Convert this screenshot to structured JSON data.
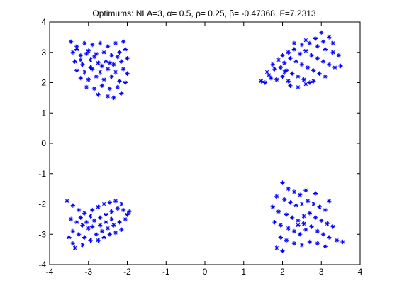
{
  "chart_data": {
    "type": "scatter",
    "title": "Optimums: NLA=3, α= 0.5, ρ= 0.25, β= -0.47368, F=7.2313",
    "xlabel": "",
    "ylabel": "",
    "xlim": [
      -4,
      4
    ],
    "ylim": [
      -4,
      4
    ],
    "xticks": [
      -4,
      -3,
      -2,
      -1,
      0,
      1,
      2,
      3,
      4
    ],
    "yticks": [
      -4,
      -3,
      -2,
      -1,
      0,
      1,
      2,
      3,
      4
    ],
    "xtick_labels": [
      "-4",
      "-3",
      "-2",
      "-1",
      "0",
      "1",
      "2",
      "3",
      "4"
    ],
    "ytick_labels": [
      "-4",
      "-3",
      "-2",
      "-1",
      "0",
      "1",
      "2",
      "3",
      "4"
    ],
    "grid": false,
    "marker": "asterisk",
    "marker_color": "#0000ff",
    "series": [
      {
        "points": [
          [
            -3.45,
            3.35
          ],
          [
            -3.3,
            3.2
          ],
          [
            -3.1,
            3.3
          ],
          [
            -2.9,
            3.25
          ],
          [
            -2.7,
            3.3
          ],
          [
            -2.5,
            3.2
          ],
          [
            -2.3,
            3.3
          ],
          [
            -2.1,
            3.35
          ],
          [
            -3.4,
            3.0
          ],
          [
            -3.2,
            2.9
          ],
          [
            -3.0,
            3.05
          ],
          [
            -2.8,
            2.95
          ],
          [
            -2.6,
            3.0
          ],
          [
            -2.4,
            2.9
          ],
          [
            -2.2,
            3.0
          ],
          [
            -2.05,
            3.1
          ],
          [
            -3.35,
            2.7
          ],
          [
            -3.15,
            2.6
          ],
          [
            -2.95,
            2.75
          ],
          [
            -2.75,
            2.65
          ],
          [
            -2.55,
            2.7
          ],
          [
            -2.35,
            2.6
          ],
          [
            -2.15,
            2.7
          ],
          [
            -2.0,
            2.8
          ],
          [
            -3.3,
            2.4
          ],
          [
            -3.1,
            2.35
          ],
          [
            -2.9,
            2.45
          ],
          [
            -2.7,
            2.35
          ],
          [
            -2.5,
            2.45
          ],
          [
            -2.3,
            2.35
          ],
          [
            -2.1,
            2.45
          ],
          [
            -2.0,
            2.3
          ],
          [
            -3.2,
            2.15
          ],
          [
            -3.0,
            2.1
          ],
          [
            -2.8,
            2.2
          ],
          [
            -2.6,
            2.1
          ],
          [
            -2.4,
            2.2
          ],
          [
            -2.2,
            2.05
          ],
          [
            -2.05,
            2.0
          ],
          [
            -3.05,
            1.85
          ],
          [
            -2.85,
            1.8
          ],
          [
            -2.65,
            1.9
          ],
          [
            -2.45,
            1.8
          ],
          [
            -2.25,
            1.85
          ],
          [
            -2.75,
            1.6
          ],
          [
            -2.5,
            1.55
          ],
          [
            -2.35,
            1.5
          ],
          [
            -2.15,
            1.65
          ],
          [
            -3.3,
            3.1
          ],
          [
            -3.05,
            2.95
          ],
          [
            -2.85,
            2.85
          ],
          [
            -2.65,
            2.55
          ],
          [
            -2.45,
            2.65
          ],
          [
            -2.25,
            2.85
          ],
          [
            -3.2,
            2.75
          ],
          [
            -2.95,
            2.5
          ]
        ]
      },
      {
        "points": [
          [
            1.45,
            2.05
          ],
          [
            1.55,
            2.0
          ],
          [
            1.7,
            2.15
          ],
          [
            1.85,
            2.1
          ],
          [
            2.0,
            2.2
          ],
          [
            2.15,
            2.05
          ],
          [
            1.6,
            2.35
          ],
          [
            1.8,
            2.45
          ],
          [
            1.95,
            2.5
          ],
          [
            2.1,
            2.4
          ],
          [
            2.25,
            2.3
          ],
          [
            2.4,
            2.2
          ],
          [
            2.55,
            2.1
          ],
          [
            2.7,
            2.0
          ],
          [
            1.75,
            2.6
          ],
          [
            1.9,
            2.75
          ],
          [
            2.05,
            2.65
          ],
          [
            2.2,
            2.8
          ],
          [
            2.35,
            2.7
          ],
          [
            2.5,
            2.6
          ],
          [
            2.65,
            2.5
          ],
          [
            2.8,
            2.4
          ],
          [
            2.95,
            2.3
          ],
          [
            3.1,
            2.2
          ],
          [
            2.0,
            2.9
          ],
          [
            2.15,
            3.0
          ],
          [
            2.3,
            3.1
          ],
          [
            2.45,
            2.95
          ],
          [
            2.6,
            3.05
          ],
          [
            2.75,
            2.9
          ],
          [
            2.9,
            2.8
          ],
          [
            3.05,
            2.7
          ],
          [
            3.2,
            2.6
          ],
          [
            3.35,
            2.5
          ],
          [
            3.5,
            2.55
          ],
          [
            2.3,
            3.3
          ],
          [
            2.5,
            3.25
          ],
          [
            2.7,
            3.3
          ],
          [
            2.9,
            3.2
          ],
          [
            3.1,
            3.1
          ],
          [
            3.3,
            3.0
          ],
          [
            3.45,
            2.9
          ],
          [
            2.6,
            3.4
          ],
          [
            2.85,
            3.45
          ],
          [
            3.05,
            3.35
          ],
          [
            3.2,
            3.5
          ],
          [
            3.0,
            3.65
          ],
          [
            3.3,
            3.3
          ],
          [
            2.2,
            1.9
          ],
          [
            2.4,
            1.85
          ],
          [
            2.6,
            1.95
          ],
          [
            2.8,
            2.05
          ],
          [
            1.65,
            2.25
          ],
          [
            2.05,
            2.35
          ]
        ]
      },
      {
        "points": [
          [
            -3.55,
            -1.9
          ],
          [
            -3.4,
            -2.05
          ],
          [
            -3.25,
            -2.2
          ],
          [
            -3.1,
            -2.3
          ],
          [
            -2.95,
            -2.4
          ],
          [
            -3.45,
            -2.5
          ],
          [
            -3.3,
            -2.6
          ],
          [
            -3.15,
            -2.7
          ],
          [
            -3.0,
            -2.8
          ],
          [
            -2.85,
            -2.55
          ],
          [
            -2.7,
            -2.45
          ],
          [
            -2.55,
            -2.35
          ],
          [
            -2.4,
            -2.25
          ],
          [
            -2.25,
            -2.15
          ],
          [
            -2.1,
            -2.2
          ],
          [
            -1.95,
            -2.25
          ],
          [
            -3.4,
            -2.9
          ],
          [
            -3.25,
            -3.0
          ],
          [
            -3.1,
            -3.1
          ],
          [
            -2.95,
            -3.2
          ],
          [
            -3.4,
            -3.3
          ],
          [
            -3.35,
            -3.45
          ],
          [
            -3.15,
            -3.35
          ],
          [
            -2.8,
            -3.0
          ],
          [
            -2.65,
            -2.9
          ],
          [
            -2.5,
            -2.8
          ],
          [
            -2.35,
            -2.7
          ],
          [
            -2.2,
            -2.6
          ],
          [
            -2.05,
            -2.5
          ],
          [
            -2.9,
            -2.2
          ],
          [
            -2.75,
            -2.1
          ],
          [
            -2.6,
            -2.0
          ],
          [
            -2.45,
            -1.95
          ],
          [
            -2.3,
            -1.9
          ],
          [
            -2.15,
            -2.0
          ],
          [
            -2.6,
            -3.1
          ],
          [
            -2.45,
            -3.0
          ],
          [
            -2.3,
            -2.95
          ],
          [
            -2.15,
            -2.85
          ],
          [
            -2.7,
            -2.7
          ],
          [
            -2.55,
            -2.6
          ],
          [
            -2.4,
            -2.5
          ],
          [
            -3.2,
            -2.45
          ],
          [
            -3.05,
            -2.6
          ],
          [
            -2.9,
            -2.75
          ],
          [
            -2.75,
            -3.2
          ],
          [
            -3.5,
            -3.1
          ],
          [
            -2.0,
            -2.35
          ]
        ]
      },
      {
        "points": [
          [
            2.0,
            -1.3
          ],
          [
            2.15,
            -1.5
          ],
          [
            2.3,
            -1.6
          ],
          [
            2.45,
            -1.7
          ],
          [
            1.85,
            -1.75
          ],
          [
            2.05,
            -1.85
          ],
          [
            2.2,
            -1.95
          ],
          [
            2.35,
            -2.05
          ],
          [
            2.5,
            -2.0
          ],
          [
            2.65,
            -1.9
          ],
          [
            2.8,
            -2.0
          ],
          [
            2.95,
            -2.1
          ],
          [
            3.1,
            -2.2
          ],
          [
            1.75,
            -2.1
          ],
          [
            1.9,
            -2.25
          ],
          [
            2.1,
            -2.35
          ],
          [
            2.25,
            -2.45
          ],
          [
            2.4,
            -2.55
          ],
          [
            2.55,
            -2.4
          ],
          [
            2.7,
            -2.3
          ],
          [
            2.85,
            -2.45
          ],
          [
            3.0,
            -2.55
          ],
          [
            3.15,
            -2.65
          ],
          [
            3.3,
            -2.75
          ],
          [
            1.8,
            -2.6
          ],
          [
            1.95,
            -2.7
          ],
          [
            2.15,
            -2.8
          ],
          [
            2.3,
            -2.9
          ],
          [
            2.45,
            -3.0
          ],
          [
            2.6,
            -2.85
          ],
          [
            2.75,
            -2.75
          ],
          [
            2.9,
            -2.9
          ],
          [
            3.05,
            -3.0
          ],
          [
            3.2,
            -3.1
          ],
          [
            3.4,
            -3.2
          ],
          [
            3.55,
            -3.25
          ],
          [
            1.95,
            -3.1
          ],
          [
            2.1,
            -3.2
          ],
          [
            2.3,
            -3.3
          ],
          [
            2.5,
            -3.35
          ],
          [
            2.7,
            -3.25
          ],
          [
            2.9,
            -3.3
          ],
          [
            3.1,
            -3.4
          ],
          [
            1.85,
            -3.45
          ],
          [
            2.0,
            -3.55
          ],
          [
            2.6,
            -1.55
          ],
          [
            2.85,
            -1.65
          ],
          [
            3.2,
            -1.9
          ],
          [
            2.4,
            -2.7
          ],
          [
            2.55,
            -2.65
          ]
        ]
      }
    ]
  }
}
